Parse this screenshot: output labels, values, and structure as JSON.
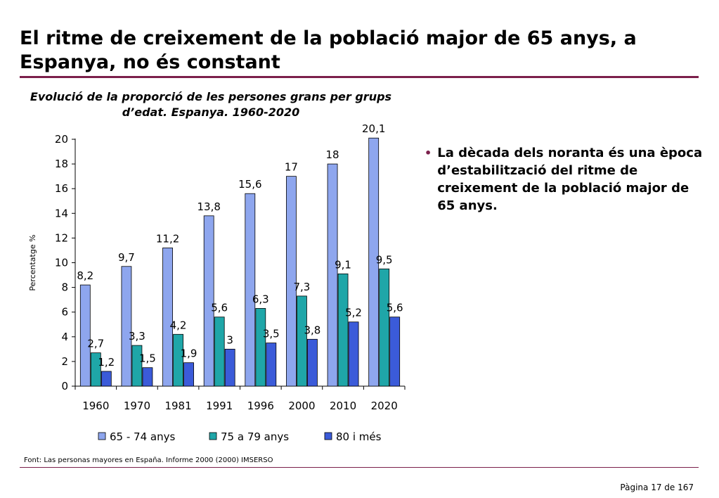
{
  "page": {
    "title": "El ritme de creixement de la població major de 65 anys, a Espanya, no és constant",
    "bullet": "La dècada dels noranta és una època d’estabilització del ritme de creixement de la població major de 65 anys.",
    "source": "Font: Las personas mayores en España. Informe 2000 (2000) IMSERSO",
    "page_number": "Pàgina 17 de 167"
  },
  "colors": {
    "rule": "#7b1f4b"
  },
  "chart_data": {
    "type": "bar",
    "title": "Evolució de la proporció de les persones grans per grups d’edat. Espanya. 1960-2020",
    "xlabel": "",
    "ylabel": "Percentatge %",
    "categories": [
      "1960",
      "1970",
      "1981",
      "1991",
      "1996",
      "2000",
      "2010",
      "2020"
    ],
    "ylim": [
      0,
      20
    ],
    "yticks": [
      0,
      2,
      4,
      6,
      8,
      10,
      12,
      14,
      16,
      18,
      20
    ],
    "legend_position": "bottom",
    "grid": false,
    "series": [
      {
        "name": "65 - 74 anys",
        "color": "#8ea6ee",
        "values": [
          8.2,
          9.7,
          11.2,
          13.8,
          15.6,
          17,
          18,
          20.1
        ],
        "labels": [
          "8,2",
          "9,7",
          "11,2",
          "13,8",
          "15,6",
          "17",
          "18",
          "20,1"
        ]
      },
      {
        "name": "75 a 79 anys",
        "color": "#1fa6a8",
        "values": [
          2.7,
          3.3,
          4.2,
          5.6,
          6.3,
          7.3,
          9.1,
          9.5
        ],
        "labels": [
          "2,7",
          "3,3",
          "4,2",
          "5,6",
          "6,3",
          "7,3",
          "9,1",
          "9,5"
        ]
      },
      {
        "name": "80 i més",
        "color": "#3b5bd9",
        "values": [
          1.2,
          1.5,
          1.9,
          3,
          3.5,
          3.8,
          5.2,
          5.6
        ],
        "labels": [
          "1,2",
          "1,5",
          "1,9",
          "3",
          "3,5",
          "3,8",
          "5,2",
          "5,6"
        ]
      }
    ]
  }
}
